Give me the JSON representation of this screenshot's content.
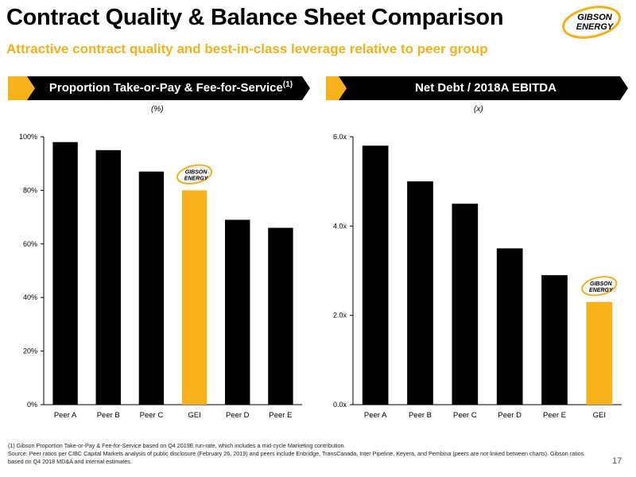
{
  "header": {
    "title": "Contract Quality & Balance Sheet Comparison",
    "subtitle": "Attractive contract quality and best-in-class leverage relative to peer group",
    "logo_text_top": "GIBSON",
    "logo_text_bottom": "ENERGY"
  },
  "colors": {
    "accent": "#f7b21b",
    "bar": "#000000",
    "banner": "#000000"
  },
  "panels": [
    {
      "banner_label": "Proportion Take-or-Pay & Fee-for-Service",
      "banner_sup": "(1)",
      "unit": "(%)"
    },
    {
      "banner_label": "Net Debt / 2018A EBITDA",
      "banner_sup": "",
      "unit": "(x)"
    }
  ],
  "chart_data": [
    {
      "type": "bar",
      "categories": [
        "Peer A",
        "Peer B",
        "Peer C",
        "GEI",
        "Peer D",
        "Peer E"
      ],
      "values": [
        98,
        95,
        87,
        80,
        69,
        66
      ],
      "highlight": "GEI",
      "ylim": [
        0,
        100
      ],
      "yticks": [
        0,
        20,
        40,
        60,
        80,
        100
      ],
      "ytick_labels": [
        "0%",
        "20%",
        "40%",
        "60%",
        "80%",
        "100%"
      ],
      "grid": false
    },
    {
      "type": "bar",
      "categories": [
        "Peer A",
        "Peer B",
        "Peer C",
        "Peer D",
        "Peer E",
        "GEI"
      ],
      "values": [
        5.8,
        5.0,
        4.5,
        3.5,
        2.9,
        2.3
      ],
      "highlight": "GEI",
      "ylim": [
        0,
        6
      ],
      "yticks": [
        0,
        2,
        4,
        6
      ],
      "ytick_labels": [
        "0.0x",
        "2.0x",
        "4.0x",
        "6.0x"
      ],
      "grid": false
    }
  ],
  "footnotes": {
    "note1": "(1) Gibson Proportion Take-or-Pay & Fee-for-Service based on Q4 2019E run-rate, which includes a mid-cycle Marketing contribution.",
    "source": "Source: Peer ratios per CIBC Capital Markets analysis of public disclosure (February 26, 2019) and peers include Enbridge, TransCanada, Inter Pipeline, Keyera, and Pembina (peers are not linked between charts). Gibson ratios based on Q4 2018 MD&A and internal estimates."
  },
  "page_number": "17"
}
